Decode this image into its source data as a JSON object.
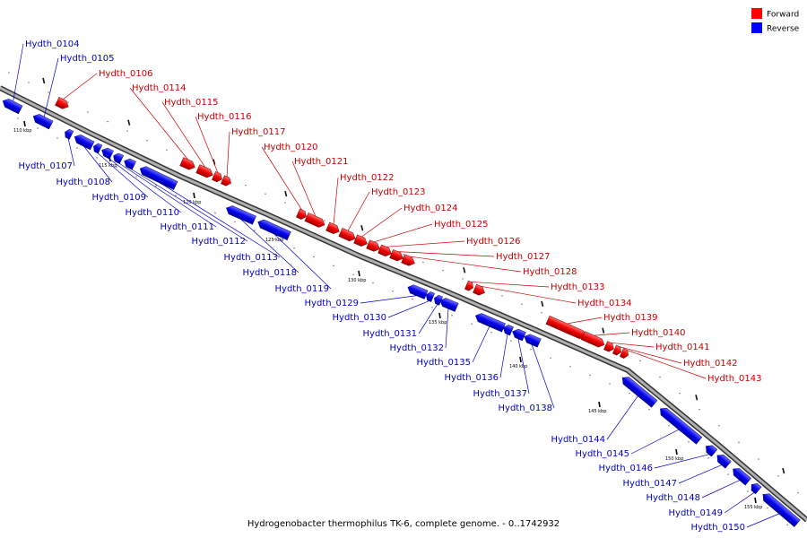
{
  "caption": "Hydrogenobacter thermophilus TK-6, complete genome. - 0..1742932",
  "legend": [
    {
      "label": "Forward",
      "color": "#ff0000"
    },
    {
      "label": "Reverse",
      "color": "#0000ff"
    }
  ],
  "ticks": [
    "110 kbp",
    "115 kbp",
    "120 kbp",
    "125 kbp",
    "130 kbp",
    "135 kbp",
    "140 kbp",
    "145 kbp",
    "150 kbp",
    "155 kbp"
  ],
  "genes": [
    {
      "name": "Hydth_0104",
      "strand": "rev"
    },
    {
      "name": "Hydth_0105",
      "strand": "rev"
    },
    {
      "name": "Hydth_0106",
      "strand": "fwd"
    },
    {
      "name": "Hydth_0107",
      "strand": "rev"
    },
    {
      "name": "Hydth_0108",
      "strand": "rev"
    },
    {
      "name": "Hydth_0109",
      "strand": "rev"
    },
    {
      "name": "Hydth_0110",
      "strand": "rev"
    },
    {
      "name": "Hydth_0111",
      "strand": "rev"
    },
    {
      "name": "Hydth_0112",
      "strand": "rev"
    },
    {
      "name": "Hydth_0113",
      "strand": "rev"
    },
    {
      "name": "Hydth_0114",
      "strand": "fwd"
    },
    {
      "name": "Hydth_0115",
      "strand": "fwd"
    },
    {
      "name": "Hydth_0116",
      "strand": "fwd"
    },
    {
      "name": "Hydth_0117",
      "strand": "fwd"
    },
    {
      "name": "Hydth_0118",
      "strand": "rev"
    },
    {
      "name": "Hydth_0119",
      "strand": "rev"
    },
    {
      "name": "Hydth_0120",
      "strand": "fwd"
    },
    {
      "name": "Hydth_0121",
      "strand": "fwd"
    },
    {
      "name": "Hydth_0122",
      "strand": "fwd"
    },
    {
      "name": "Hydth_0123",
      "strand": "fwd"
    },
    {
      "name": "Hydth_0124",
      "strand": "fwd"
    },
    {
      "name": "Hydth_0125",
      "strand": "fwd"
    },
    {
      "name": "Hydth_0126",
      "strand": "fwd"
    },
    {
      "name": "Hydth_0127",
      "strand": "fwd"
    },
    {
      "name": "Hydth_0128",
      "strand": "fwd"
    },
    {
      "name": "Hydth_0129",
      "strand": "rev"
    },
    {
      "name": "Hydth_0130",
      "strand": "rev"
    },
    {
      "name": "Hydth_0131",
      "strand": "rev"
    },
    {
      "name": "Hydth_0132",
      "strand": "rev"
    },
    {
      "name": "Hydth_0133",
      "strand": "fwd"
    },
    {
      "name": "Hydth_0134",
      "strand": "fwd"
    },
    {
      "name": "Hydth_0135",
      "strand": "rev"
    },
    {
      "name": "Hydth_0136",
      "strand": "rev"
    },
    {
      "name": "Hydth_0137",
      "strand": "rev"
    },
    {
      "name": "Hydth_0138",
      "strand": "rev"
    },
    {
      "name": "Hydth_0139",
      "strand": "fwd"
    },
    {
      "name": "Hydth_0140",
      "strand": "fwd"
    },
    {
      "name": "Hydth_0141",
      "strand": "fwd"
    },
    {
      "name": "Hydth_0142",
      "strand": "fwd"
    },
    {
      "name": "Hydth_0143",
      "strand": "fwd"
    },
    {
      "name": "Hydth_0144",
      "strand": "rev"
    },
    {
      "name": "Hydth_0145",
      "strand": "rev"
    },
    {
      "name": "Hydth_0146",
      "strand": "rev"
    },
    {
      "name": "Hydth_0147",
      "strand": "rev"
    },
    {
      "name": "Hydth_0148",
      "strand": "rev"
    },
    {
      "name": "Hydth_0149",
      "strand": "rev"
    },
    {
      "name": "Hydth_0150",
      "strand": "rev"
    }
  ]
}
